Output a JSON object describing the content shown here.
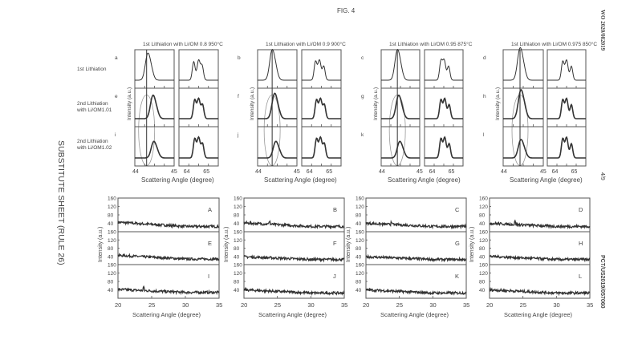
{
  "header": {
    "figure_label": "FIG. 4",
    "side_note": "SUBSTITUTE SHEET (RULE 26)",
    "pub_number": "WO 2020/082019",
    "sheet": "4/9",
    "app_number": "PCT/US2019/057060"
  },
  "row_labels": [
    [
      "1st Lithiation"
    ],
    [
      "2nd Lithiation",
      "with Li/OM1.01"
    ],
    [
      "2nd Lithiation",
      "with Li/OM1.02"
    ]
  ],
  "chart_data": [
    {
      "type": "line",
      "name": "XRD peak windows (normalized)",
      "xlabel": "Scattering Angle (degree)",
      "ylabel": "Intensity (a.u.)",
      "windows": [
        {
          "xlim": [
            44,
            45
          ],
          "ticks": [
            44,
            45
          ],
          "tick_labels": [
            "44",
            "45"
          ]
        },
        {
          "xlim": [
            63.6,
            65.6
          ],
          "ticks": [
            64,
            65
          ],
          "tick_labels": [
            "64",
            "65"
          ]
        }
      ],
      "groups": [
        {
          "title": "1st Lithiation with Li/OM 0.8 950°C",
          "panel_labels": [
            "a",
            "e",
            "i"
          ],
          "reference_line": 44.3,
          "peak_44": [
            44.32,
            44.45,
            44.47
          ],
          "peak_44_height": [
            0.75,
            0.65,
            0.45
          ],
          "peak_64": [
            [
              64.35,
              64.6,
              64.78
            ],
            [
              64.4,
              64.6,
              64.8
            ],
            [
              64.4,
              64.6,
              64.8
            ]
          ]
        },
        {
          "title": "1st Lithiation with Li/OM 0.9 900°C",
          "panel_labels": [
            "b",
            "f",
            "j"
          ],
          "reference_line": 44.37,
          "peak_44": [
            44.36,
            44.42,
            44.45
          ],
          "peak_44_height": [
            0.85,
            0.7,
            0.45
          ],
          "peak_64": [
            [
              64.3,
              64.5,
              64.72
            ],
            [
              64.35,
              64.55,
              64.75
            ],
            [
              64.35,
              64.55,
              64.75
            ]
          ]
        },
        {
          "title": "1st Lithiation with Li/OM 0.95 875°C",
          "panel_labels": [
            "c",
            "g",
            "k"
          ],
          "reference_line": 44.42,
          "peak_44": [
            44.41,
            44.44,
            44.47
          ],
          "peak_44_height": [
            0.85,
            0.65,
            0.45
          ],
          "peak_64": [
            [
              64.45,
              64.62,
              64.85
            ],
            [
              64.45,
              64.65,
              64.88
            ],
            [
              64.45,
              64.65,
              64.88
            ]
          ]
        },
        {
          "title": "1st Lithiation with Li/OM 0.975 850°C",
          "panel_labels": [
            "d",
            "h",
            "l"
          ],
          "reference_line": 44.42,
          "peak_44": [
            44.41,
            44.43,
            44.43
          ],
          "peak_44_height": [
            0.9,
            0.8,
            0.5
          ],
          "peak_64": [
            [
              64.4,
              64.6,
              64.85
            ],
            [
              64.4,
              64.6,
              64.85
            ],
            [
              64.4,
              64.6,
              64.85
            ]
          ]
        }
      ]
    },
    {
      "type": "line",
      "name": "Low-angle XRD scans",
      "xlabel": "Scattering Angle (degree)",
      "ylabel": "Intensity (a.u.)",
      "xlim": [
        20,
        35
      ],
      "ylim": [
        0,
        160
      ],
      "xticks": [
        "20",
        "25",
        "30",
        "35"
      ],
      "yticks": [
        "40",
        "80",
        "120",
        "160"
      ],
      "panels": [
        {
          "label": "A",
          "start": 45,
          "end": 25,
          "spike": null
        },
        {
          "label": "B",
          "start": 42,
          "end": 25,
          "spike": 23.8
        },
        {
          "label": "C",
          "start": 40,
          "end": 25,
          "spike": 23.8
        },
        {
          "label": "D",
          "start": 40,
          "end": 25,
          "spike": 23.8
        },
        {
          "label": "E",
          "start": 45,
          "end": 27,
          "spike": null
        },
        {
          "label": "F",
          "start": 38,
          "end": 25,
          "spike": null
        },
        {
          "label": "G",
          "start": 38,
          "end": 25,
          "spike": null
        },
        {
          "label": "H",
          "start": 40,
          "end": 25,
          "spike": null
        },
        {
          "label": "I",
          "start": 42,
          "end": 28,
          "spike": 23.8
        },
        {
          "label": "J",
          "start": 40,
          "end": 25,
          "spike": null
        },
        {
          "label": "K",
          "start": 40,
          "end": 25,
          "spike": null
        },
        {
          "label": "L",
          "start": 40,
          "end": 25,
          "spike": null
        }
      ]
    }
  ],
  "colors": {
    "ink": "#333333",
    "frame": "#555555",
    "ellipse": "#999999"
  }
}
